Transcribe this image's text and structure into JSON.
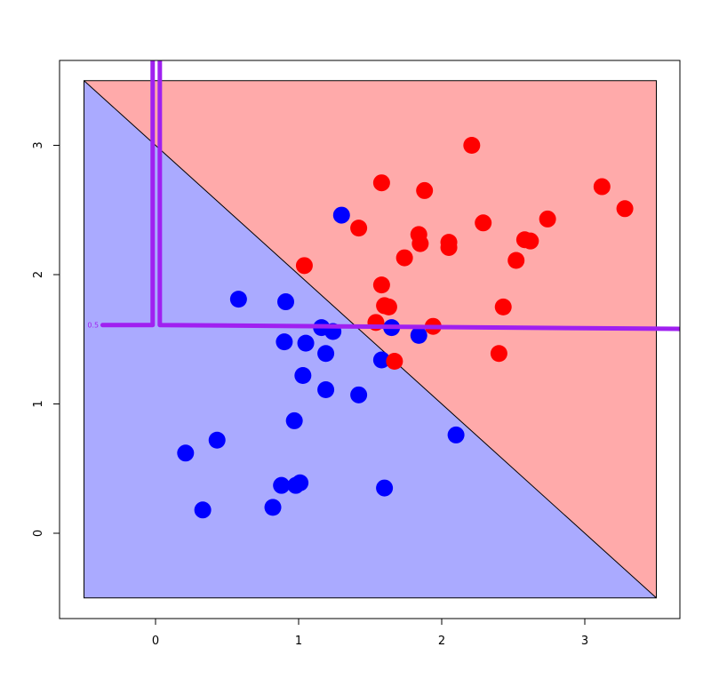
{
  "chart_data": {
    "type": "scatter",
    "title": "",
    "xlabel": "",
    "ylabel": "",
    "xlim": [
      -0.5,
      3.5
    ],
    "ylim": [
      -0.5,
      3.5
    ],
    "x_ticks": [
      0,
      1,
      2,
      3
    ],
    "y_ticks": [
      0,
      1,
      2,
      3
    ],
    "grid": false,
    "background_regions": [
      {
        "name": "blue-region",
        "color": "#aaaaff",
        "polygon": [
          [
            -0.5,
            3.5
          ],
          [
            3.5,
            -0.5
          ],
          [
            -0.5,
            -0.5
          ]
        ]
      },
      {
        "name": "red-region",
        "color": "#ffaaaa",
        "polygon": [
          [
            -0.5,
            3.5
          ],
          [
            3.5,
            3.5
          ],
          [
            3.5,
            -0.5
          ]
        ]
      }
    ],
    "decision_line": {
      "from": [
        -0.5,
        3.5
      ],
      "to": [
        3.5,
        -0.5
      ],
      "color": "#000000"
    },
    "contour": {
      "label": "0.5",
      "color": "#a020f0",
      "segments": [
        [
          [
            -0.37,
            1.61
          ],
          [
            -0.02,
            1.61
          ],
          [
            -0.02,
            3.7
          ]
        ],
        [
          [
            0.03,
            3.7
          ],
          [
            0.03,
            1.61
          ],
          [
            3.7,
            1.58
          ]
        ]
      ]
    },
    "series": [
      {
        "color": "#0000ff",
        "x": [
          1.3,
          0.58,
          0.91,
          0.9,
          1.05,
          1.16,
          1.24,
          1.19,
          1.03,
          1.19,
          1.42,
          1.65,
          1.84,
          1.58,
          0.97,
          2.1,
          0.21,
          0.43,
          0.88,
          0.98,
          1.01,
          0.33,
          0.82,
          1.6
        ],
        "y": [
          2.46,
          1.81,
          1.79,
          1.48,
          1.47,
          1.59,
          1.56,
          1.39,
          1.22,
          1.11,
          1.07,
          1.59,
          1.53,
          1.34,
          0.87,
          0.76,
          0.62,
          0.72,
          0.37,
          0.37,
          0.39,
          0.18,
          0.2,
          0.35
        ]
      },
      {
        "color": "#ff0000",
        "x": [
          2.21,
          1.58,
          1.88,
          3.12,
          3.28,
          1.42,
          1.84,
          1.85,
          2.05,
          2.05,
          2.29,
          2.74,
          2.58,
          2.62,
          1.74,
          2.52,
          1.04,
          1.58,
          1.6,
          1.63,
          1.54,
          1.94,
          2.43,
          2.4,
          1.67
        ],
        "y": [
          3.0,
          2.71,
          2.65,
          2.68,
          2.51,
          2.36,
          2.31,
          2.24,
          2.25,
          2.21,
          2.4,
          2.43,
          2.27,
          2.26,
          2.13,
          2.11,
          2.07,
          1.92,
          1.76,
          1.75,
          1.63,
          1.6,
          1.75,
          1.39,
          1.33
        ]
      }
    ]
  }
}
